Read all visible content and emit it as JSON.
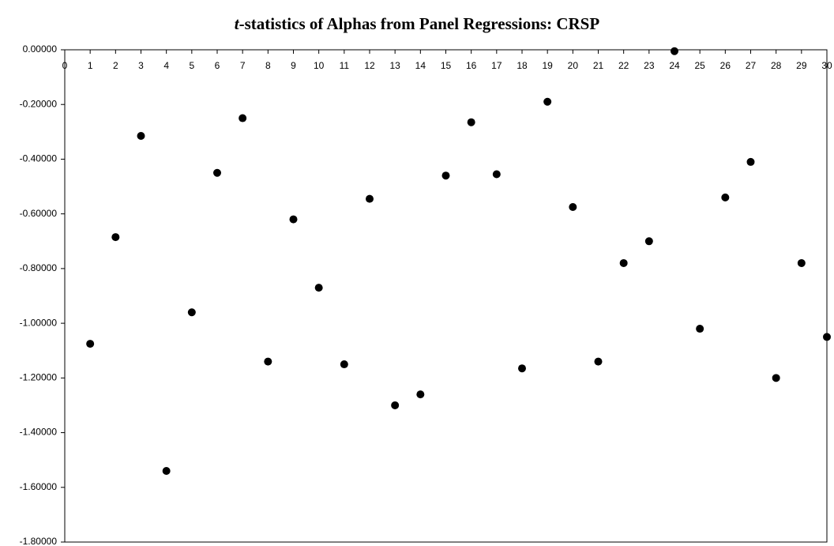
{
  "chart_data": {
    "type": "scatter",
    "title": {
      "italic": "t",
      "text": "-statistics of Alphas from Panel Regressions: CRSP"
    },
    "x": [
      1,
      2,
      3,
      4,
      5,
      6,
      7,
      8,
      9,
      10,
      11,
      12,
      13,
      14,
      15,
      16,
      17,
      18,
      19,
      20,
      21,
      22,
      23,
      24,
      25,
      26,
      27,
      28,
      29,
      30
    ],
    "values": [
      -1.075,
      -0.685,
      -0.315,
      -1.54,
      -0.96,
      -0.45,
      -0.25,
      -1.14,
      -0.62,
      -0.87,
      -1.15,
      -0.545,
      -1.3,
      -1.26,
      -0.46,
      -0.265,
      -0.455,
      -1.165,
      -0.19,
      -0.575,
      -1.14,
      -0.78,
      -0.7,
      -0.005,
      -1.02,
      -0.54,
      -0.41,
      -1.2,
      -0.78,
      -1.05
    ],
    "color": "#000000",
    "xlim": [
      0,
      30
    ],
    "xticks": [
      0,
      1,
      2,
      3,
      4,
      5,
      6,
      7,
      8,
      9,
      10,
      11,
      12,
      13,
      14,
      15,
      16,
      17,
      18,
      19,
      20,
      21,
      22,
      23,
      24,
      25,
      26,
      27,
      28,
      29,
      30
    ],
    "ylim": [
      -1.8,
      0
    ],
    "yticks": [
      {
        "value": 0,
        "label": "0.00000"
      },
      {
        "value": -0.2,
        "label": "-0.20000"
      },
      {
        "value": -0.4,
        "label": "-0.40000"
      },
      {
        "value": -0.6,
        "label": "-0.60000"
      },
      {
        "value": -0.8,
        "label": "-0.80000"
      },
      {
        "value": -1.0,
        "label": "-1.00000"
      },
      {
        "value": -1.2,
        "label": "-1.20000"
      },
      {
        "value": -1.4,
        "label": "-1.40000"
      },
      {
        "value": -1.6,
        "label": "-1.60000"
      },
      {
        "value": -1.8,
        "label": "-1.80000"
      }
    ]
  }
}
